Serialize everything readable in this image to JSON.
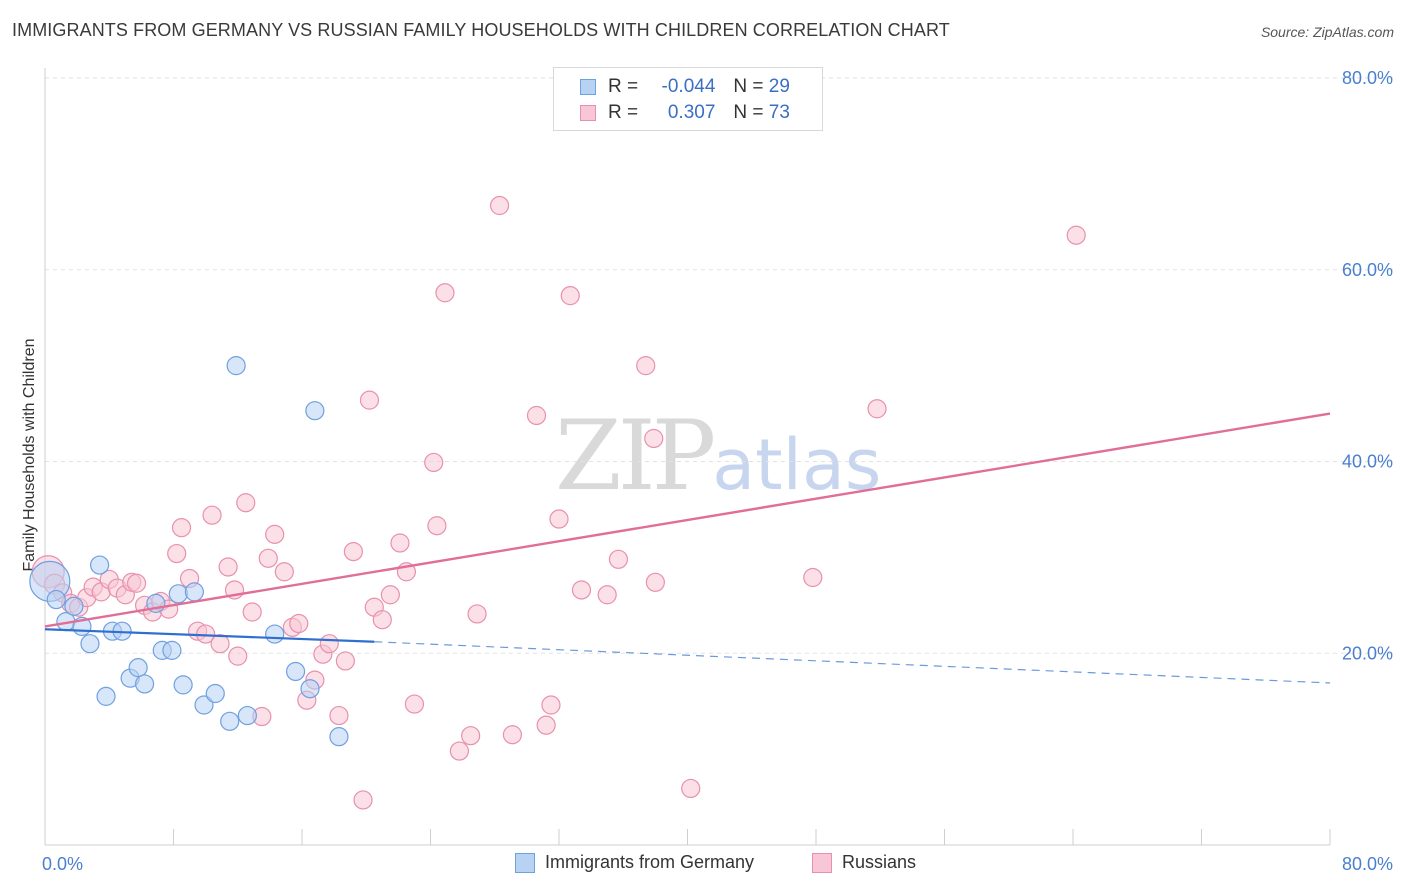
{
  "title": "IMMIGRANTS FROM GERMANY VS RUSSIAN FAMILY HOUSEHOLDS WITH CHILDREN CORRELATION CHART",
  "source": "Source: ZipAtlas.com",
  "watermark": {
    "zip": "ZIP",
    "atlas": "atlas"
  },
  "legend": {
    "r_label": "R =",
    "n_label": "N =",
    "rows": [
      {
        "name": "Immigrants from Germany",
        "r": "-0.044",
        "n": "29",
        "fill": "#b7d2f3",
        "stroke": "#6fa0e0"
      },
      {
        "name": "Russians",
        "r": "0.307",
        "n": "73",
        "fill": "#f8c6d6",
        "stroke": "#e890ad"
      }
    ]
  },
  "chart_data": {
    "type": "scatter",
    "title": "IMMIGRANTS FROM GERMANY VS RUSSIAN FAMILY HOUSEHOLDS WITH CHILDREN CORRELATION CHART",
    "xlabel": "",
    "ylabel": "Family Households with Children",
    "xlim": [
      0,
      80
    ],
    "ylim": [
      0,
      80
    ],
    "x_tick_labels": {
      "min": "0.0%",
      "max": "80.0%"
    },
    "y_ticks": [
      {
        "value": 20,
        "label": "20.0%"
      },
      {
        "value": 40,
        "label": "40.0%"
      },
      {
        "value": 60,
        "label": "60.0%"
      },
      {
        "value": 80,
        "label": "80.0%"
      }
    ],
    "series": [
      {
        "name": "Immigrants from Germany",
        "color": "#6fa0e0",
        "fill": "#b7d2f3",
        "trend": {
          "x0": 0,
          "y0": 22.5,
          "x1": 20.5,
          "y1": 21.2,
          "dash_to": 80,
          "dash_y": 16.9,
          "color": "#2f6fcf"
        },
        "points": [
          [
            0.3,
            27.5,
            20
          ],
          [
            0.7,
            25.6,
            9
          ],
          [
            1.3,
            23.3,
            9
          ],
          [
            1.8,
            24.9,
            9
          ],
          [
            2.3,
            22.8,
            9
          ],
          [
            2.8,
            21.0,
            9
          ],
          [
            3.4,
            29.2,
            9
          ],
          [
            3.8,
            15.5,
            9
          ],
          [
            4.2,
            22.3,
            9
          ],
          [
            4.8,
            22.3,
            9
          ],
          [
            5.3,
            17.4,
            9
          ],
          [
            5.8,
            18.5,
            9
          ],
          [
            6.2,
            16.8,
            9
          ],
          [
            6.9,
            25.2,
            9
          ],
          [
            7.3,
            20.3,
            9
          ],
          [
            7.9,
            20.3,
            9
          ],
          [
            8.3,
            26.2,
            9
          ],
          [
            8.6,
            16.7,
            9
          ],
          [
            9.3,
            26.4,
            9
          ],
          [
            9.9,
            14.6,
            9
          ],
          [
            10.6,
            15.8,
            9
          ],
          [
            11.5,
            12.9,
            9
          ],
          [
            11.9,
            50.0,
            9
          ],
          [
            12.6,
            13.5,
            9
          ],
          [
            14.3,
            22.0,
            9
          ],
          [
            15.6,
            18.1,
            9
          ],
          [
            16.5,
            16.3,
            9
          ],
          [
            16.8,
            45.3,
            9
          ],
          [
            18.3,
            11.3,
            9
          ]
        ]
      },
      {
        "name": "Russians",
        "color": "#e890ad",
        "fill": "#f8c6d6",
        "trend": {
          "x0": 0,
          "y0": 22.8,
          "x1": 80,
          "y1": 45.0,
          "color": "#e06e98"
        },
        "points": [
          [
            0.2,
            28.5,
            16
          ],
          [
            0.6,
            27.2,
            10
          ],
          [
            1.1,
            26.3,
            9
          ],
          [
            1.6,
            25.2,
            9
          ],
          [
            2.1,
            24.8,
            9
          ],
          [
            2.6,
            25.8,
            9
          ],
          [
            3.0,
            26.9,
            9
          ],
          [
            3.5,
            26.4,
            9
          ],
          [
            4.0,
            27.7,
            9
          ],
          [
            4.5,
            26.8,
            9
          ],
          [
            5.0,
            26.1,
            9
          ],
          [
            5.4,
            27.4,
            9
          ],
          [
            5.7,
            27.3,
            9
          ],
          [
            6.2,
            25.0,
            9
          ],
          [
            6.7,
            24.3,
            9
          ],
          [
            7.2,
            25.4,
            9
          ],
          [
            7.7,
            24.6,
            9
          ],
          [
            8.2,
            30.4,
            9
          ],
          [
            8.5,
            33.1,
            9
          ],
          [
            9.0,
            27.8,
            9
          ],
          [
            9.5,
            22.3,
            9
          ],
          [
            10.0,
            22.0,
            9
          ],
          [
            10.4,
            34.4,
            9
          ],
          [
            10.9,
            21.0,
            9
          ],
          [
            11.4,
            29.0,
            9
          ],
          [
            11.8,
            26.6,
            9
          ],
          [
            12.0,
            19.7,
            9
          ],
          [
            12.5,
            35.7,
            9
          ],
          [
            12.9,
            24.3,
            9
          ],
          [
            13.5,
            13.4,
            9
          ],
          [
            13.9,
            29.9,
            9
          ],
          [
            14.3,
            32.4,
            9
          ],
          [
            14.9,
            28.5,
            9
          ],
          [
            15.4,
            22.7,
            9
          ],
          [
            15.8,
            23.1,
            9
          ],
          [
            16.3,
            15.1,
            9
          ],
          [
            16.8,
            17.2,
            9
          ],
          [
            17.3,
            19.9,
            9
          ],
          [
            17.7,
            21.0,
            9
          ],
          [
            18.3,
            13.5,
            9
          ],
          [
            18.7,
            19.2,
            9
          ],
          [
            19.2,
            30.6,
            9
          ],
          [
            19.8,
            4.7,
            9
          ],
          [
            20.2,
            46.4,
            9
          ],
          [
            20.5,
            24.8,
            9
          ],
          [
            21.0,
            23.5,
            9
          ],
          [
            21.5,
            26.1,
            9
          ],
          [
            22.1,
            31.5,
            9
          ],
          [
            22.5,
            28.5,
            9
          ],
          [
            23.0,
            14.7,
            9
          ],
          [
            24.2,
            39.9,
            9
          ],
          [
            24.4,
            33.3,
            9
          ],
          [
            24.9,
            57.6,
            9
          ],
          [
            25.8,
            9.8,
            9
          ],
          [
            26.5,
            11.4,
            9
          ],
          [
            26.9,
            24.1,
            9
          ],
          [
            28.3,
            66.7,
            9
          ],
          [
            29.1,
            11.5,
            9
          ],
          [
            30.6,
            44.8,
            9
          ],
          [
            31.2,
            12.5,
            9
          ],
          [
            31.5,
            14.6,
            9
          ],
          [
            32.0,
            34.0,
            9
          ],
          [
            32.7,
            57.3,
            9
          ],
          [
            33.4,
            26.6,
            9
          ],
          [
            35.0,
            26.1,
            9
          ],
          [
            35.7,
            29.8,
            9
          ],
          [
            37.4,
            50.0,
            9
          ],
          [
            37.9,
            42.4,
            9
          ],
          [
            38.0,
            27.4,
            9
          ],
          [
            40.2,
            5.9,
            9
          ],
          [
            47.8,
            27.9,
            9
          ],
          [
            51.8,
            45.5,
            9
          ],
          [
            64.2,
            63.6,
            9
          ]
        ]
      }
    ]
  }
}
